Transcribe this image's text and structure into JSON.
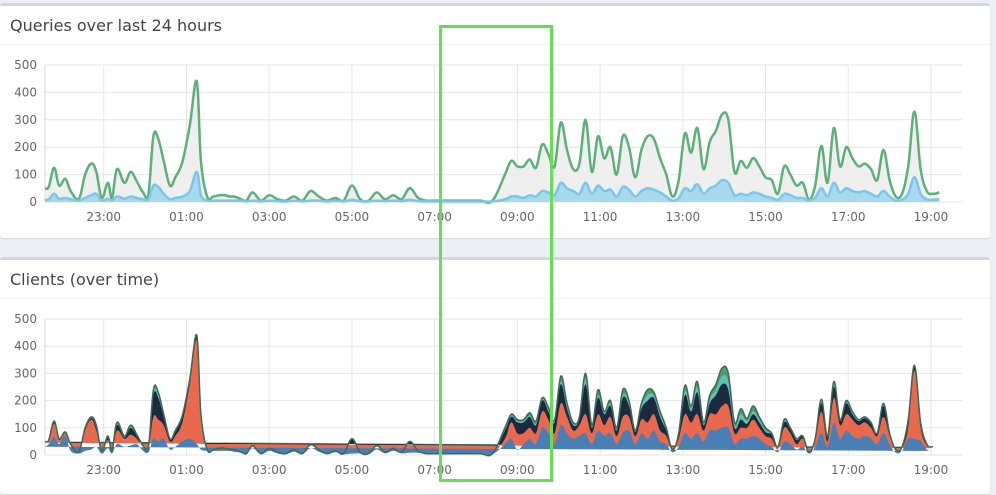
{
  "panels": {
    "queries": {
      "title": "Queries over last 24 hours"
    },
    "clients": {
      "title": "Clients (over time)"
    }
  },
  "axes": {
    "ylim": [
      0,
      500
    ],
    "y_ticks": [
      "500",
      "400",
      "300",
      "200",
      "100",
      "0"
    ],
    "x_ticks": [
      "23:00",
      "01:00",
      "03:00",
      "05:00",
      "07:00",
      "09:00",
      "11:00",
      "13:00",
      "15:00",
      "17:00",
      "19:00"
    ],
    "grid": true
  },
  "chart_data": [
    {
      "type": "area",
      "title": "Queries over last 24 hours",
      "x_range": [
        "21:35",
        "19:45"
      ],
      "x_hours": [
        -2.42,
        -2.33,
        -2.2,
        -2.08,
        -1.93,
        -1.8,
        -1.6,
        -1.45,
        -1.3,
        -1.18,
        -1.05,
        -0.9,
        -0.8,
        -0.68,
        -0.5,
        -0.35,
        -0.2,
        -0.05,
        0.08,
        0.2,
        0.32,
        0.45,
        0.6,
        0.73,
        0.9,
        1.08,
        1.25,
        1.35,
        1.5,
        1.65,
        1.8,
        1.93,
        2.05,
        2.15,
        2.25,
        2.33,
        2.45,
        2.6,
        2.8,
        3.0,
        3.2,
        3.4,
        3.6,
        3.8,
        4.0,
        4.2,
        4.4,
        4.6,
        4.8,
        5.0,
        5.2,
        5.4,
        5.6,
        5.8,
        6.0,
        6.2,
        6.4,
        6.6,
        6.8,
        6.95,
        7.1,
        7.3,
        7.5,
        7.8,
        8.1,
        8.4,
        8.7,
        8.85,
        9.0,
        9.15,
        9.3,
        9.45,
        9.6,
        9.75,
        9.9,
        10.05,
        10.2,
        10.35,
        10.5,
        10.65,
        10.8,
        10.95,
        11.1,
        11.25,
        11.4,
        11.55,
        11.7,
        11.85,
        12.0,
        12.15,
        12.3,
        12.45,
        12.6,
        12.75,
        12.9,
        13.05,
        13.2,
        13.35,
        13.5,
        13.65,
        13.8,
        13.95,
        14.1,
        14.25,
        14.4,
        14.55,
        14.7,
        14.85,
        15.0,
        15.15,
        15.3,
        15.45,
        15.6,
        15.75,
        15.9,
        16.05,
        16.2,
        16.35,
        16.5,
        16.65,
        16.8,
        16.95,
        17.1,
        17.25,
        17.4,
        17.55,
        17.7,
        17.85,
        18.0,
        18.15,
        18.3,
        18.45,
        18.6,
        18.75,
        18.9,
        19.05,
        19.2,
        19.35,
        19.5,
        19.65,
        19.75
      ],
      "series": [
        {
          "color": "#5cb079",
          "fill": "#ececec",
          "values": [
            50,
            55,
            125,
            60,
            85,
            40,
            12,
            100,
            140,
            110,
            15,
            70,
            15,
            120,
            70,
            110,
            75,
            35,
            30,
            240,
            230,
            150,
            60,
            90,
            145,
            280,
            440,
            150,
            20,
            20,
            25,
            25,
            20,
            20,
            15,
            10,
            5,
            35,
            5,
            25,
            10,
            5,
            20,
            5,
            40,
            20,
            5,
            15,
            5,
            60,
            10,
            5,
            35,
            10,
            25,
            10,
            50,
            15,
            5,
            5,
            5,
            5,
            5,
            5,
            5,
            5,
            100,
            150,
            130,
            130,
            155,
            125,
            210,
            175,
            130,
            290,
            190,
            120,
            140,
            300,
            110,
            240,
            160,
            200,
            100,
            240,
            200,
            90,
            190,
            240,
            230,
            160,
            100,
            20,
            80,
            250,
            180,
            270,
            120,
            220,
            260,
            320,
            300,
            110,
            150,
            125,
            160,
            130,
            90,
            80,
            30,
            130,
            100,
            60,
            70,
            10,
            60,
            205,
            70,
            270,
            130,
            200,
            160,
            130,
            140,
            120,
            80,
            190,
            80,
            20,
            30,
            130,
            330,
            120,
            40,
            30,
            35
          ]
        },
        {
          "color": "#7cc6e6",
          "fill": "#9ed6ee",
          "values": [
            8,
            10,
            30,
            12,
            15,
            10,
            5,
            15,
            25,
            30,
            5,
            12,
            5,
            20,
            12,
            20,
            15,
            10,
            10,
            60,
            55,
            30,
            10,
            15,
            20,
            40,
            110,
            25,
            5,
            5,
            5,
            5,
            5,
            5,
            5,
            5,
            2,
            5,
            2,
            5,
            3,
            2,
            5,
            2,
            5,
            5,
            2,
            5,
            2,
            8,
            3,
            2,
            5,
            3,
            5,
            3,
            8,
            3,
            2,
            2,
            2,
            2,
            2,
            2,
            2,
            2,
            10,
            20,
            20,
            15,
            25,
            20,
            40,
            35,
            25,
            70,
            50,
            40,
            30,
            70,
            30,
            60,
            40,
            45,
            20,
            55,
            45,
            20,
            40,
            50,
            45,
            35,
            20,
            5,
            15,
            50,
            40,
            65,
            30,
            50,
            60,
            80,
            70,
            25,
            30,
            25,
            35,
            30,
            20,
            15,
            8,
            30,
            25,
            15,
            15,
            5,
            15,
            50,
            20,
            70,
            35,
            50,
            40,
            35,
            40,
            30,
            20,
            40,
            20,
            5,
            8,
            30,
            90,
            30,
            10,
            8,
            10
          ]
        }
      ]
    },
    {
      "type": "area",
      "title": "Clients (over time)",
      "stacked": true,
      "x_range": [
        "21:35",
        "19:45"
      ],
      "series": [
        {
          "color": "#4a7fb5",
          "values": [
            30,
            40,
            65,
            40,
            70,
            15,
            5,
            15,
            20,
            30,
            5,
            25,
            5,
            40,
            30,
            35,
            40,
            15,
            10,
            60,
            50,
            60,
            20,
            30,
            50,
            60,
            40,
            20,
            15,
            15,
            15,
            15,
            15,
            12,
            10,
            8,
            3,
            25,
            3,
            15,
            6,
            3,
            12,
            3,
            25,
            12,
            3,
            10,
            3,
            5,
            6,
            3,
            20,
            6,
            15,
            6,
            8,
            8,
            3,
            3,
            3,
            3,
            3,
            3,
            3,
            3,
            40,
            60,
            20,
            40,
            60,
            40,
            100,
            80,
            40,
            110,
            80,
            60,
            70,
            80,
            40,
            90,
            70,
            80,
            40,
            80,
            90,
            40,
            80,
            60,
            90,
            50,
            40,
            10,
            30,
            80,
            60,
            80,
            50,
            90,
            90,
            100,
            100,
            40,
            60,
            60,
            70,
            60,
            40,
            30,
            10,
            50,
            40,
            20,
            30,
            5,
            30,
            80,
            30,
            120,
            60,
            90,
            70,
            60,
            70,
            60,
            40,
            80,
            40,
            8,
            15,
            60,
            60,
            50,
            20,
            15,
            20
          ]
        },
        {
          "color": "#e8694e",
          "values": [
            15,
            10,
            50,
            15,
            10,
            20,
            5,
            75,
            110,
            60,
            8,
            30,
            8,
            50,
            30,
            40,
            20,
            15,
            15,
            80,
            80,
            50,
            30,
            40,
            70,
            200,
            380,
            120,
            3,
            3,
            5,
            5,
            3,
            5,
            3,
            1,
            1,
            5,
            1,
            5,
            2,
            1,
            5,
            1,
            8,
            5,
            1,
            3,
            1,
            5,
            2,
            1,
            10,
            2,
            5,
            2,
            5,
            3,
            1,
            1,
            1,
            1,
            1,
            1,
            1,
            1,
            20,
            60,
            60,
            40,
            40,
            40,
            60,
            50,
            40,
            80,
            60,
            30,
            40,
            70,
            40,
            60,
            40,
            60,
            30,
            60,
            50,
            30,
            50,
            60,
            60,
            40,
            30,
            5,
            30,
            70,
            60,
            70,
            40,
            60,
            60,
            80,
            80,
            40,
            40,
            40,
            60,
            40,
            30,
            30,
            10,
            50,
            40,
            20,
            30,
            3,
            20,
            80,
            20,
            90,
            50,
            60,
            60,
            50,
            50,
            40,
            30,
            60,
            30,
            6,
            10,
            40,
            250,
            50,
            15,
            10,
            12
          ]
        },
        {
          "color": "#1c2a40",
          "values": [
            3,
            3,
            5,
            3,
            3,
            3,
            1,
            5,
            5,
            10,
            1,
            10,
            1,
            20,
            5,
            25,
            10,
            3,
            3,
            80,
            80,
            30,
            8,
            15,
            20,
            15,
            15,
            8,
            1,
            1,
            3,
            3,
            1,
            2,
            1,
            1,
            1,
            3,
            1,
            3,
            1,
            1,
            2,
            1,
            5,
            2,
            1,
            1,
            1,
            50,
            1,
            1,
            3,
            1,
            3,
            1,
            35,
            2,
            1,
            1,
            1,
            1,
            1,
            1,
            1,
            1,
            30,
            20,
            40,
            40,
            40,
            30,
            40,
            30,
            40,
            70,
            30,
            20,
            20,
            110,
            20,
            60,
            40,
            40,
            20,
            70,
            40,
            15,
            40,
            80,
            60,
            50,
            20,
            3,
            15,
            70,
            40,
            80,
            20,
            40,
            70,
            80,
            60,
            20,
            30,
            15,
            20,
            20,
            15,
            15,
            7,
            20,
            15,
            15,
            8,
            1,
            8,
            30,
            15,
            40,
            15,
            40,
            20,
            15,
            15,
            15,
            8,
            40,
            8,
            4,
            3,
            20,
            15,
            15,
            3,
            3,
            2
          ]
        },
        {
          "color": "#5ec4b8",
          "values": [
            1,
            1,
            2,
            1,
            1,
            1,
            1,
            2,
            2,
            5,
            1,
            3,
            1,
            5,
            3,
            5,
            3,
            1,
            1,
            10,
            10,
            5,
            1,
            3,
            3,
            3,
            3,
            1,
            1,
            1,
            1,
            1,
            1,
            1,
            1,
            0,
            0,
            1,
            0,
            1,
            1,
            0,
            1,
            0,
            1,
            1,
            0,
            1,
            0,
            0,
            1,
            0,
            1,
            1,
            1,
            1,
            1,
            1,
            0,
            0,
            0,
            0,
            0,
            0,
            0,
            0,
            5,
            5,
            5,
            5,
            5,
            5,
            5,
            5,
            5,
            10,
            10,
            5,
            5,
            20,
            5,
            10,
            5,
            10,
            5,
            10,
            10,
            3,
            10,
            20,
            10,
            10,
            5,
            1,
            3,
            15,
            10,
            20,
            5,
            15,
            20,
            30,
            30,
            10,
            20,
            10,
            10,
            10,
            5,
            3,
            2,
            5,
            3,
            3,
            2,
            0,
            2,
            10,
            3,
            10,
            3,
            5,
            5,
            3,
            3,
            3,
            1,
            5,
            1,
            1,
            1,
            5,
            3,
            3,
            1,
            1,
            0
          ]
        },
        {
          "color": "#4f9a6e",
          "values": [
            1,
            1,
            3,
            1,
            1,
            1,
            0,
            3,
            3,
            5,
            0,
            2,
            0,
            5,
            2,
            5,
            2,
            1,
            1,
            10,
            10,
            5,
            1,
            2,
            2,
            2,
            2,
            1,
            0,
            0,
            1,
            1,
            0,
            0,
            0,
            0,
            0,
            1,
            0,
            1,
            0,
            0,
            0,
            0,
            1,
            0,
            0,
            0,
            0,
            0,
            0,
            0,
            1,
            0,
            1,
            0,
            1,
            1,
            0,
            0,
            0,
            0,
            0,
            0,
            0,
            0,
            5,
            5,
            5,
            5,
            10,
            10,
            5,
            10,
            5,
            20,
            10,
            5,
            5,
            20,
            5,
            20,
            5,
            10,
            5,
            20,
            10,
            2,
            10,
            20,
            10,
            10,
            5,
            1,
            2,
            20,
            10,
            20,
            5,
            15,
            20,
            30,
            30,
            10,
            20,
            10,
            20,
            10,
            10,
            2,
            1,
            5,
            2,
            2,
            0,
            1,
            0,
            5,
            2,
            10,
            2,
            5,
            5,
            2,
            2,
            2,
            1,
            5,
            1,
            1,
            1,
            5,
            2,
            2,
            1,
            1,
            1
          ]
        }
      ]
    }
  ],
  "annotation": {
    "color": "#66dd55"
  }
}
